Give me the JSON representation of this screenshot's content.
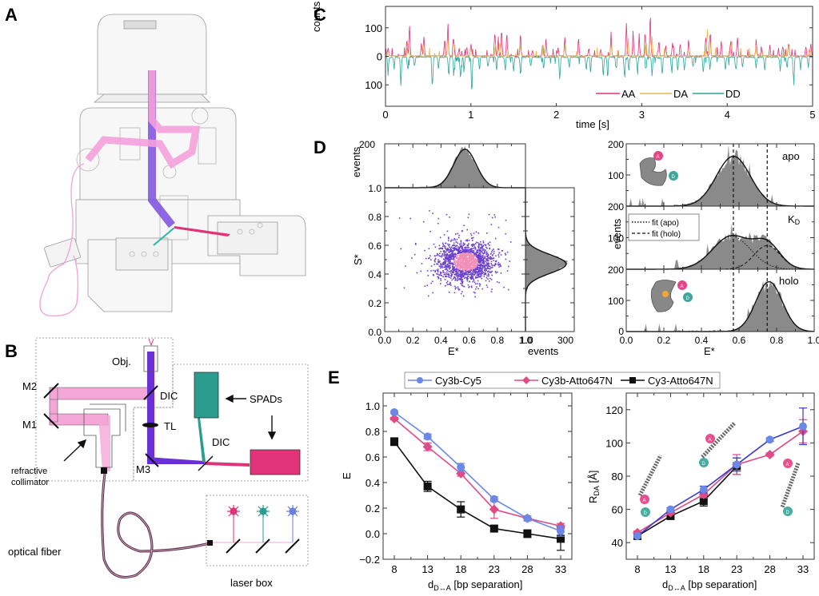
{
  "panels": {
    "A": {
      "label": "A"
    },
    "B": {
      "label": "B",
      "labels": {
        "obj": "Obj.",
        "m1": "M1",
        "m2": "M2",
        "m3": "M3",
        "dic1": "DIC",
        "dic2": "DIC",
        "tl": "TL",
        "spads": "SPADs",
        "collimator_line1": "refractive",
        "collimator_line2": "collimator",
        "fiber": "optical fiber",
        "laserbox": "laser box"
      },
      "colors": {
        "excitation": "#f4a6d7",
        "emission": "#6a2fd6",
        "spad_green": "#2a9d8f",
        "spad_pink": "#e0337a",
        "laser_blue": "#6b7fe0"
      }
    },
    "C": {
      "label": "C"
    },
    "D": {
      "label": "D"
    },
    "E": {
      "label": "E"
    }
  },
  "chart_data": [
    {
      "id": "C",
      "type": "line",
      "title": "",
      "xlabel": "time [s]",
      "ylabel": "counts / ms",
      "xlim": [
        0,
        5
      ],
      "ylim": [
        -175,
        175
      ],
      "xticks": [
        "0",
        "1",
        "2",
        "3",
        "4",
        "5"
      ],
      "yticks": [
        {
          "v": 100,
          "label": "100"
        },
        {
          "v": 0,
          "label": "0"
        },
        {
          "v": -100,
          "label": "100"
        }
      ],
      "legend": {
        "placement": "bottom-right",
        "entries": [
          "AA",
          "DA",
          "DD"
        ]
      },
      "series": [
        {
          "name": "AA",
          "color": "#e0337a",
          "sign": 1,
          "peaks": [
            [
              0.03,
              40
            ],
            [
              0.25,
              60
            ],
            [
              0.28,
              110
            ],
            [
              0.42,
              50
            ],
            [
              0.45,
              80
            ],
            [
              0.69,
              60
            ],
            [
              0.73,
              160
            ],
            [
              0.8,
              80
            ],
            [
              0.86,
              30
            ],
            [
              0.95,
              45
            ],
            [
              1.0,
              60
            ],
            [
              1.28,
              105
            ],
            [
              1.32,
              70
            ],
            [
              1.36,
              100
            ],
            [
              1.42,
              80
            ],
            [
              1.58,
              85
            ],
            [
              1.72,
              20
            ],
            [
              1.84,
              60
            ],
            [
              1.88,
              70
            ],
            [
              2.02,
              40
            ],
            [
              2.1,
              75
            ],
            [
              2.26,
              80
            ],
            [
              2.38,
              30
            ],
            [
              2.52,
              25
            ],
            [
              2.64,
              100
            ],
            [
              2.82,
              115
            ],
            [
              2.9,
              95
            ],
            [
              2.97,
              80
            ],
            [
              3.04,
              110
            ],
            [
              3.1,
              160
            ],
            [
              3.2,
              70
            ],
            [
              3.28,
              45
            ],
            [
              3.36,
              50
            ],
            [
              3.45,
              60
            ],
            [
              3.55,
              70
            ],
            [
              3.75,
              90
            ],
            [
              3.8,
              100
            ],
            [
              3.93,
              60
            ],
            [
              4.04,
              70
            ],
            [
              4.12,
              75
            ],
            [
              4.34,
              80
            ],
            [
              4.4,
              35
            ],
            [
              4.5,
              55
            ],
            [
              4.6,
              30
            ],
            [
              4.65,
              45
            ],
            [
              4.72,
              70
            ],
            [
              4.92,
              40
            ],
            [
              4.98,
              55
            ]
          ]
        },
        {
          "name": "DA",
          "color": "#e8b84a",
          "sign": 1,
          "peaks": [
            [
              0.03,
              20
            ],
            [
              0.27,
              70
            ],
            [
              0.44,
              40
            ],
            [
              0.73,
              80
            ],
            [
              0.81,
              45
            ],
            [
              1.0,
              35
            ],
            [
              1.29,
              60
            ],
            [
              1.34,
              50
            ],
            [
              1.58,
              40
            ],
            [
              1.85,
              40
            ],
            [
              2.1,
              40
            ],
            [
              2.64,
              55
            ],
            [
              2.84,
              60
            ],
            [
              3.05,
              70
            ],
            [
              3.12,
              80
            ],
            [
              3.77,
              100
            ],
            [
              3.8,
              60
            ],
            [
              4.05,
              40
            ],
            [
              4.34,
              40
            ],
            [
              4.72,
              40
            ],
            [
              4.96,
              30
            ]
          ]
        },
        {
          "name": "DD",
          "color": "#2aa69a",
          "sign": -1,
          "peaks": [
            [
              0.03,
              70
            ],
            [
              0.1,
              50
            ],
            [
              0.18,
              110
            ],
            [
              0.26,
              60
            ],
            [
              0.34,
              45
            ],
            [
              0.55,
              125
            ],
            [
              0.62,
              45
            ],
            [
              0.74,
              85
            ],
            [
              0.8,
              75
            ],
            [
              0.88,
              90
            ],
            [
              0.92,
              60
            ],
            [
              1.01,
              160
            ],
            [
              1.1,
              50
            ],
            [
              1.2,
              40
            ],
            [
              1.3,
              60
            ],
            [
              1.4,
              60
            ],
            [
              1.5,
              70
            ],
            [
              1.58,
              90
            ],
            [
              1.7,
              45
            ],
            [
              1.85,
              60
            ],
            [
              2.04,
              110
            ],
            [
              2.15,
              45
            ],
            [
              2.35,
              70
            ],
            [
              2.4,
              55
            ],
            [
              2.55,
              90
            ],
            [
              2.6,
              80
            ],
            [
              2.7,
              60
            ],
            [
              2.8,
              75
            ],
            [
              2.85,
              60
            ],
            [
              2.95,
              70
            ],
            [
              3.05,
              50
            ],
            [
              3.12,
              80
            ],
            [
              3.24,
              75
            ],
            [
              3.35,
              55
            ],
            [
              3.42,
              65
            ],
            [
              3.5,
              60
            ],
            [
              3.6,
              50
            ],
            [
              3.72,
              60
            ],
            [
              3.8,
              50
            ],
            [
              3.98,
              65
            ],
            [
              4.1,
              55
            ],
            [
              4.18,
              45
            ],
            [
              4.34,
              55
            ],
            [
              4.44,
              50
            ],
            [
              4.62,
              60
            ],
            [
              4.7,
              45
            ],
            [
              4.78,
              120
            ],
            [
              4.86,
              50
            ],
            [
              4.95,
              40
            ]
          ]
        }
      ]
    },
    {
      "id": "D-left",
      "type": "scatter",
      "xlabel": "E*",
      "ylabel": "S*",
      "xlim": [
        0,
        1
      ],
      "ylim": [
        0,
        1
      ],
      "xticks": [
        "0.0",
        "0.2",
        "0.4",
        "0.6",
        "0.8",
        "1.0"
      ],
      "yticks": [
        "0.0",
        "0.2",
        "0.4",
        "0.6",
        "0.8",
        "1.0"
      ],
      "cluster": {
        "center_E": 0.57,
        "center_S": 0.49,
        "sd_E": 0.1,
        "sd_S": 0.07,
        "n": 1800
      },
      "colors": {
        "points": "#6a3fd0",
        "core": "#f08fb8"
      },
      "top_hist": {
        "ylabel": "events",
        "ytick": "200",
        "center": 0.57,
        "sd": 0.08,
        "peak": 175,
        "ymax": 200
      },
      "side_hist": {
        "xlabel": "events",
        "xticks": [
          "1.0",
          "300"
        ],
        "center": 0.47,
        "sd": 0.065,
        "peak": 250,
        "xmax": 300
      }
    },
    {
      "id": "D-right",
      "type": "bar",
      "xlabel": "E*",
      "ylabel": "events",
      "xlim": [
        0,
        1
      ],
      "xticks": [
        "0.0",
        "0.2",
        "0.4",
        "0.6",
        "0.8",
        "1.0"
      ],
      "reference_lines": [
        0.57,
        0.75
      ],
      "subpanels": [
        {
          "name": "apo",
          "yticks": [
            "200",
            "100"
          ],
          "fits": [
            {
              "center": 0.57,
              "sd": 0.09,
              "peak": 160
            }
          ]
        },
        {
          "name": "KD",
          "name_main": "K",
          "name_sub": "D",
          "yticks": [
            "200",
            "100"
          ],
          "fits": [
            {
              "center": 0.56,
              "sd": 0.1,
              "peak": 105,
              "style": "dotted"
            },
            {
              "center": 0.75,
              "sd": 0.07,
              "peak": 75,
              "style": "dashed"
            }
          ]
        },
        {
          "name": "holo",
          "yticks": [
            "200",
            "100",
            "0"
          ],
          "fits": [
            {
              "center": 0.76,
              "sd": 0.07,
              "peak": 160
            }
          ]
        }
      ],
      "legend": {
        "placement": "top-left",
        "entries": [
          {
            "label": "fit (apo)",
            "style": "dotted"
          },
          {
            "label": "fit (holo)",
            "style": "dashed"
          }
        ]
      }
    },
    {
      "id": "E-left",
      "type": "line",
      "xlabel_main": "d",
      "xlabel_sub": "D↔A",
      "xlabel_rest": " [bp separation]",
      "ylabel": "E",
      "categories": [
        8,
        13,
        18,
        23,
        28,
        33
      ],
      "ylim": [
        -0.2,
        1.1
      ],
      "yticks": [
        "1.0",
        "0.8",
        "0.6",
        "0.4",
        "0.2",
        "0.0",
        "−0.2"
      ],
      "series": [
        {
          "name": "Cy3b-Cy5",
          "color": "#6b88e6",
          "marker": "circle",
          "values": [
            0.95,
            0.76,
            0.52,
            0.27,
            0.12,
            0.02
          ],
          "err": [
            0.01,
            0.02,
            0.03,
            0.02,
            0.02,
            0.04
          ]
        },
        {
          "name": "Cy3b-Atto647N",
          "color": "#e04a86",
          "marker": "diamond",
          "values": [
            0.9,
            0.68,
            0.47,
            0.19,
            0.12,
            0.06
          ],
          "err": [
            0.01,
            0.03,
            0.02,
            0.07,
            0.02,
            0.02
          ]
        },
        {
          "name": "Cy3-Atto647N",
          "color": "#111111",
          "marker": "square",
          "values": [
            0.72,
            0.37,
            0.19,
            0.04,
            0.0,
            -0.04
          ],
          "err": [
            0.03,
            0.04,
            0.06,
            0.02,
            0.03,
            0.09
          ]
        }
      ]
    },
    {
      "id": "E-right",
      "type": "line",
      "xlabel_main": "d",
      "xlabel_sub": "D↔A",
      "xlabel_rest": " [bp separation]",
      "ylabel_main": "R",
      "ylabel_sub": "DA",
      "ylabel_rest": " [Å]",
      "categories": [
        8,
        13,
        18,
        23,
        28,
        33
      ],
      "ylim": [
        30,
        130
      ],
      "yticks": [
        "120",
        "100",
        "80",
        "60",
        "40"
      ],
      "series": [
        {
          "name": "Cy3b-Cy5",
          "color": "#3a3ad0",
          "marker": "circle",
          "values": [
            44,
            60,
            72,
            87,
            102,
            110
          ],
          "err": [
            1,
            1,
            2,
            4,
            1,
            11
          ]
        },
        {
          "name": "Cy3b-Atto647N",
          "color": "#e04a86",
          "marker": "diamond",
          "values": [
            46,
            58,
            69,
            87,
            93,
            107
          ],
          "err": [
            1,
            1,
            2,
            6,
            1,
            7
          ]
        },
        {
          "name": "Cy3-Atto647N",
          "color": "#111111",
          "marker": "square",
          "values": [
            44,
            56,
            65,
            86,
            0,
            0
          ],
          "err": [
            1,
            1,
            3,
            5,
            0,
            0
          ],
          "n_points": 4
        }
      ]
    }
  ],
  "legend_E": {
    "entries": [
      "Cy3b-Cy5",
      "Cy3b-Atto647N",
      "Cy3-Atto647N"
    ]
  },
  "dye_labels": {
    "acceptor": "A",
    "donor": "D"
  }
}
